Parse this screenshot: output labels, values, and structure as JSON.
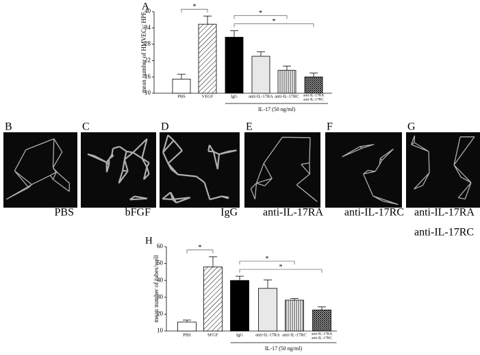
{
  "chart_data": [
    {
      "type": "bar",
      "panel": "A",
      "y_label": "mean number of HMVECs/ HPF",
      "categories": [
        "PBS",
        "VEGF",
        "IgG",
        "anti-IL-17RA",
        "anti-IL-17RC",
        [
          "anti-IL-17RA",
          "anti-IL-17RC"
        ]
      ],
      "values": [
        15.2,
        35.4,
        30.6,
        23.6,
        18.4,
        16.0
      ],
      "errors": [
        1.8,
        3.0,
        2.4,
        1.6,
        1.6,
        1.4
      ],
      "bar_styles": [
        "white",
        "diagonal",
        "black",
        "gray",
        "vertical",
        "cross"
      ],
      "ylim": [
        10,
        40
      ],
      "yticks": [
        10,
        16,
        22,
        28,
        34,
        40
      ],
      "significance": [
        {
          "from": 0,
          "to": 1,
          "label": "*"
        },
        {
          "from": 2,
          "to": 5,
          "label": "*"
        },
        {
          "from": 2,
          "to": 4,
          "label": "*"
        }
      ],
      "group": {
        "from": 2,
        "to": 5,
        "label": "IL-17 (50 ng/ml)"
      }
    },
    {
      "type": "bar",
      "panel": "H",
      "y_label": "mean number of tubes/well",
      "categories": [
        "PBS",
        "bFGF",
        "IgG",
        "anti-IL-17RA",
        "anti-IL-17RC",
        [
          "anti-IL-17RA",
          "anti-IL-17RC"
        ]
      ],
      "values": [
        15.3,
        48.0,
        40.0,
        35.3,
        28.3,
        22.5
      ],
      "errors": [
        1.2,
        6.0,
        2.5,
        5.0,
        1.0,
        1.8
      ],
      "bar_styles": [
        "white",
        "diagonal",
        "black",
        "gray",
        "vertical",
        "cross"
      ],
      "ylim": [
        10,
        60
      ],
      "yticks": [
        10,
        20,
        30,
        40,
        50,
        60
      ],
      "significance": [
        {
          "from": 0,
          "to": 1,
          "label": "*"
        },
        {
          "from": 2,
          "to": 5,
          "label": "*"
        },
        {
          "from": 2,
          "to": 4,
          "label": "*"
        }
      ],
      "group": {
        "from": 2,
        "to": 5,
        "label": "IL-17 (50 ng/ml)"
      }
    }
  ],
  "panels": [
    {
      "letter": "B",
      "caption": [
        "PBS"
      ]
    },
    {
      "letter": "C",
      "caption": [
        "bFGF"
      ]
    },
    {
      "letter": "D",
      "caption": [
        "IgG"
      ]
    },
    {
      "letter": "E",
      "caption": [
        "anti-IL-17RA"
      ]
    },
    {
      "letter": "F",
      "caption": [
        "anti-IL-17RC"
      ]
    },
    {
      "letter": "G",
      "caption": [
        "anti-IL-17RA",
        "anti-IL-17RC"
      ]
    }
  ]
}
